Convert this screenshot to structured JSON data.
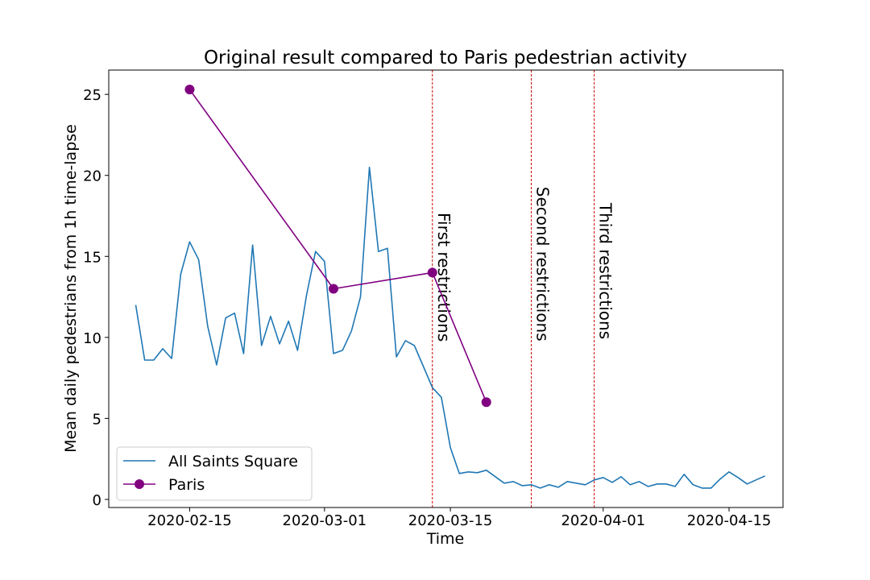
{
  "chart_data": {
    "type": "line",
    "title": "Original result compared to Paris pedestrian activity",
    "xlabel": "Time",
    "ylabel": "Mean daily pedestrians from 1h time-lapse",
    "xlim": [
      "2020-02-06",
      "2020-04-21"
    ],
    "ylim": [
      -0.5,
      26.5
    ],
    "yticks": [
      0,
      5,
      10,
      15,
      20,
      25
    ],
    "xticks": [
      "2020-02-15",
      "2020-03-01",
      "2020-03-15",
      "2020-04-01",
      "2020-04-15"
    ],
    "grid": false,
    "legend_position": "lower-left",
    "series": [
      {
        "name": "All Saints Square",
        "color": "#1f77b4",
        "marker": "none",
        "points": [
          [
            "2020-02-09",
            12.0
          ],
          [
            "2020-02-10",
            8.6
          ],
          [
            "2020-02-11",
            8.6
          ],
          [
            "2020-02-12",
            9.3
          ],
          [
            "2020-02-13",
            8.7
          ],
          [
            "2020-02-14",
            13.9
          ],
          [
            "2020-02-15",
            15.9
          ],
          [
            "2020-02-16",
            14.8
          ],
          [
            "2020-02-17",
            10.7
          ],
          [
            "2020-02-18",
            8.3
          ],
          [
            "2020-02-19",
            11.2
          ],
          [
            "2020-02-20",
            11.5
          ],
          [
            "2020-02-21",
            9.0
          ],
          [
            "2020-02-22",
            15.7
          ],
          [
            "2020-02-23",
            9.5
          ],
          [
            "2020-02-24",
            11.3
          ],
          [
            "2020-02-25",
            9.6
          ],
          [
            "2020-02-26",
            11.0
          ],
          [
            "2020-02-27",
            9.2
          ],
          [
            "2020-02-28",
            12.6
          ],
          [
            "2020-02-29",
            15.3
          ],
          [
            "2020-03-01",
            14.7
          ],
          [
            "2020-03-02",
            9.0
          ],
          [
            "2020-03-03",
            9.2
          ],
          [
            "2020-03-04",
            10.4
          ],
          [
            "2020-03-05",
            12.5
          ],
          [
            "2020-03-06",
            20.5
          ],
          [
            "2020-03-07",
            15.3
          ],
          [
            "2020-03-08",
            15.5
          ],
          [
            "2020-03-09",
            8.8
          ],
          [
            "2020-03-10",
            9.8
          ],
          [
            "2020-03-11",
            9.5
          ],
          [
            "2020-03-12",
            8.2
          ],
          [
            "2020-03-13",
            6.9
          ],
          [
            "2020-03-14",
            6.3
          ],
          [
            "2020-03-15",
            3.2
          ],
          [
            "2020-03-16",
            1.6
          ],
          [
            "2020-03-17",
            1.7
          ],
          [
            "2020-03-18",
            1.65
          ],
          [
            "2020-03-19",
            1.8
          ],
          [
            "2020-03-20",
            1.4
          ],
          [
            "2020-03-21",
            1.0
          ],
          [
            "2020-03-22",
            1.1
          ],
          [
            "2020-03-23",
            0.85
          ],
          [
            "2020-03-24",
            0.9
          ],
          [
            "2020-03-25",
            0.7
          ],
          [
            "2020-03-26",
            0.9
          ],
          [
            "2020-03-27",
            0.75
          ],
          [
            "2020-03-28",
            1.1
          ],
          [
            "2020-03-29",
            1.0
          ],
          [
            "2020-03-30",
            0.9
          ],
          [
            "2020-03-31",
            1.2
          ],
          [
            "2020-04-01",
            1.35
          ],
          [
            "2020-04-02",
            1.05
          ],
          [
            "2020-04-03",
            1.4
          ],
          [
            "2020-04-04",
            0.9
          ],
          [
            "2020-04-05",
            1.1
          ],
          [
            "2020-04-06",
            0.8
          ],
          [
            "2020-04-07",
            0.95
          ],
          [
            "2020-04-08",
            0.95
          ],
          [
            "2020-04-09",
            0.8
          ],
          [
            "2020-04-10",
            1.55
          ],
          [
            "2020-04-11",
            0.9
          ],
          [
            "2020-04-12",
            0.7
          ],
          [
            "2020-04-13",
            0.7
          ],
          [
            "2020-04-14",
            1.25
          ],
          [
            "2020-04-15",
            1.7
          ],
          [
            "2020-04-16",
            1.35
          ],
          [
            "2020-04-17",
            0.95
          ],
          [
            "2020-04-18",
            1.2
          ],
          [
            "2020-04-19",
            1.45
          ]
        ]
      },
      {
        "name": "Paris",
        "color": "#800080",
        "marker": "circle",
        "points": [
          [
            "2020-02-15",
            25.3
          ],
          [
            "2020-03-02",
            13.0
          ],
          [
            "2020-03-13",
            14.0
          ],
          [
            "2020-03-19",
            6.0
          ]
        ]
      }
    ],
    "vlines": [
      {
        "date": "2020-03-13",
        "label": "First restrictions",
        "label_y": 17.7
      },
      {
        "date": "2020-03-24",
        "label": "Second restrictions",
        "label_y": 19.3
      },
      {
        "date": "2020-03-31",
        "label": "Third restrictions",
        "label_y": 18.3
      }
    ],
    "vline_color": "#d00000"
  }
}
